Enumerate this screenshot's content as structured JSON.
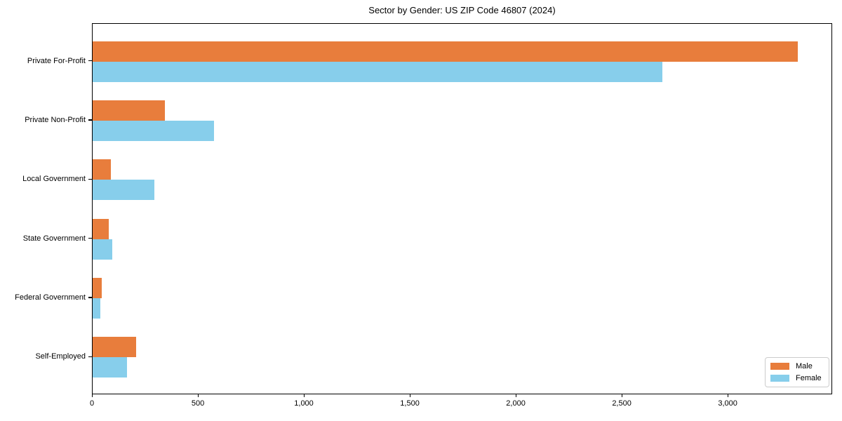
{
  "title": "Sector by Gender: US ZIP Code 46807 (2024)",
  "colors": {
    "male": "#E87D3C",
    "female": "#87CEEB",
    "axis": "#000000",
    "background": "#FFFFFF",
    "legend_border": "#CCCCCC"
  },
  "legend": {
    "entries": [
      "Male",
      "Female"
    ],
    "position": "lower right"
  },
  "chart_data": {
    "type": "bar",
    "orientation": "horizontal",
    "title": "Sector by Gender: US ZIP Code 46807 (2024)",
    "xlabel": "",
    "ylabel": "",
    "categories": [
      "Private For-Profit",
      "Private Non-Profit",
      "Local Government",
      "State Government",
      "Federal Government",
      "Self-Employed"
    ],
    "series": [
      {
        "name": "Male",
        "color": "#E87D3C",
        "values": [
          3327,
          340,
          86,
          76,
          44,
          205
        ]
      },
      {
        "name": "Female",
        "color": "#87CEEB",
        "values": [
          2689,
          574,
          291,
          93,
          38,
          161
        ]
      }
    ],
    "xlim": [
      0,
      3493
    ],
    "x_ticks": [
      0,
      500,
      1000,
      1500,
      2000,
      2500,
      3000
    ],
    "x_tick_labels": [
      "0",
      "500",
      "1,000",
      "1,500",
      "2,000",
      "2,500",
      "3,000"
    ],
    "grid": false,
    "legend_position": "lower right"
  }
}
